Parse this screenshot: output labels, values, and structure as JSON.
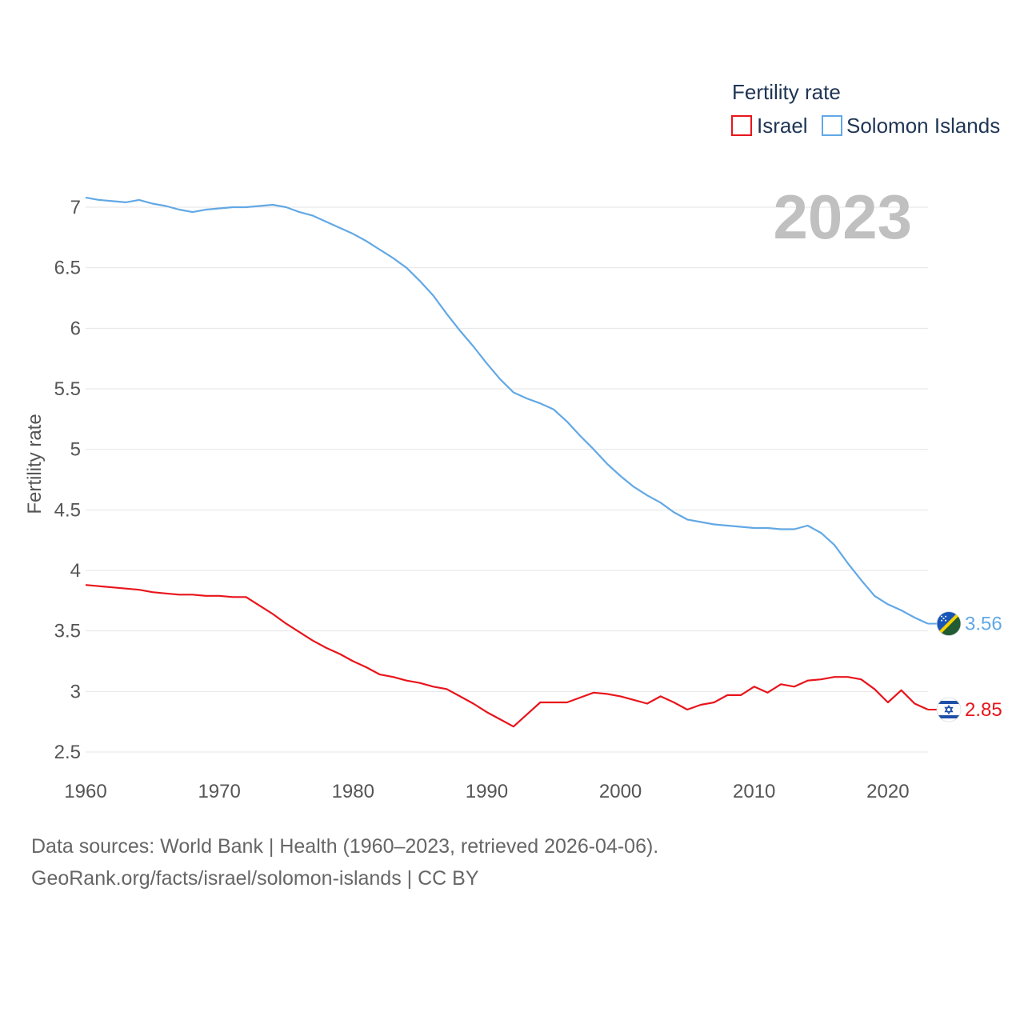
{
  "chart_data": {
    "type": "line",
    "title": "",
    "ylabel": "Fertility rate",
    "xlabel": "",
    "xlim": [
      1960,
      2023
    ],
    "ylim": [
      2.5,
      7
    ],
    "x_ticks": [
      "1960",
      "1970",
      "1980",
      "1990",
      "2000",
      "2010",
      "2020"
    ],
    "y_ticks": [
      "2.5",
      "3",
      "3.5",
      "4",
      "4.5",
      "5",
      "5.5",
      "6",
      "6.5",
      "7"
    ],
    "legend_title": "Fertility rate",
    "year_label": "2023",
    "x": [
      1960,
      1961,
      1962,
      1963,
      1964,
      1965,
      1966,
      1967,
      1968,
      1969,
      1970,
      1971,
      1972,
      1973,
      1974,
      1975,
      1976,
      1977,
      1978,
      1979,
      1980,
      1981,
      1982,
      1983,
      1984,
      1985,
      1986,
      1987,
      1988,
      1989,
      1990,
      1991,
      1992,
      1993,
      1994,
      1995,
      1996,
      1997,
      1998,
      1999,
      2000,
      2001,
      2002,
      2003,
      2004,
      2005,
      2006,
      2007,
      2008,
      2009,
      2010,
      2011,
      2012,
      2013,
      2014,
      2015,
      2016,
      2017,
      2018,
      2019,
      2020,
      2021,
      2022,
      2023
    ],
    "series": [
      {
        "name": "Israel",
        "color": "#e8141b",
        "flag": "israel-flag",
        "end_label": "2.85",
        "values": [
          3.88,
          3.87,
          3.86,
          3.85,
          3.84,
          3.82,
          3.81,
          3.8,
          3.8,
          3.79,
          3.79,
          3.78,
          3.78,
          3.71,
          3.64,
          3.56,
          3.49,
          3.42,
          3.36,
          3.31,
          3.25,
          3.2,
          3.14,
          3.12,
          3.09,
          3.07,
          3.04,
          3.02,
          2.96,
          2.9,
          2.83,
          2.77,
          2.71,
          2.81,
          2.91,
          2.91,
          2.91,
          2.95,
          2.99,
          2.98,
          2.96,
          2.93,
          2.9,
          2.96,
          2.91,
          2.85,
          2.89,
          2.91,
          2.97,
          2.97,
          3.04,
          2.99,
          3.06,
          3.04,
          3.09,
          3.1,
          3.12,
          3.12,
          3.1,
          3.02,
          2.91,
          3.01,
          2.9,
          2.85
        ]
      },
      {
        "name": "Solomon Islands",
        "color": "#62a8e5",
        "flag": "solomon-islands-flag",
        "end_label": "3.56",
        "values": [
          7.08,
          7.06,
          7.05,
          7.04,
          7.06,
          7.03,
          7.01,
          6.98,
          6.96,
          6.98,
          6.99,
          7.0,
          7.0,
          7.01,
          7.02,
          7.0,
          6.96,
          6.93,
          6.88,
          6.83,
          6.78,
          6.72,
          6.65,
          6.58,
          6.5,
          6.39,
          6.27,
          6.12,
          5.98,
          5.85,
          5.71,
          5.58,
          5.47,
          5.42,
          5.38,
          5.33,
          5.23,
          5.11,
          5.0,
          4.88,
          4.78,
          4.69,
          4.62,
          4.56,
          4.48,
          4.42,
          4.4,
          4.38,
          4.37,
          4.36,
          4.35,
          4.35,
          4.34,
          4.34,
          4.37,
          4.31,
          4.21,
          4.06,
          3.92,
          3.79,
          3.72,
          3.67,
          3.61,
          3.56
        ]
      }
    ]
  },
  "footer": {
    "line1": "Data sources: World Bank | Health (1960–2023, retrieved 2026-04-06).",
    "line2": "GeoRank.org/facts/israel/solomon-islands | CC BY"
  }
}
